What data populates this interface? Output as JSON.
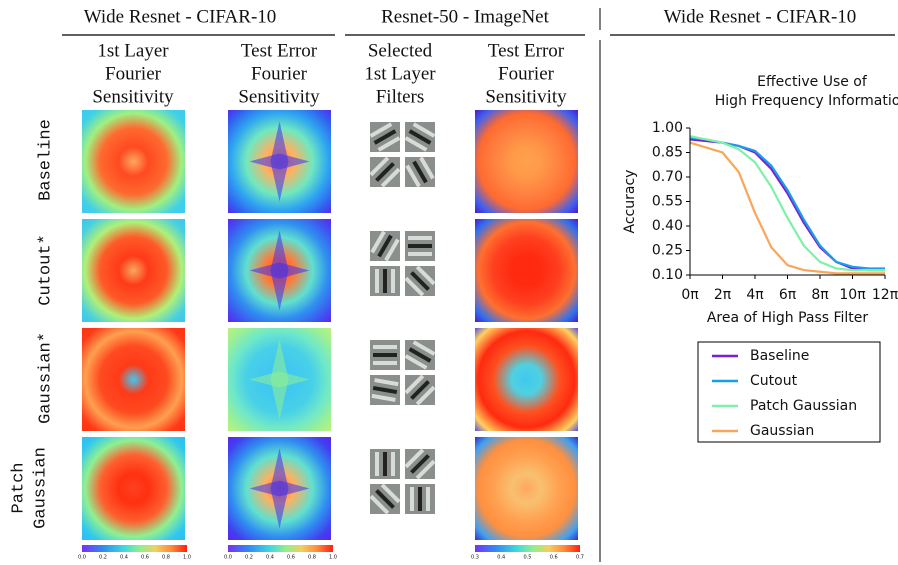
{
  "headers": [
    "Wide Resnet - CIFAR-10",
    "Resnet-50 - ImageNet",
    "Wide Resnet - CIFAR-10"
  ],
  "columns": [
    [
      "1st Layer",
      "Fourier",
      "Sensitivity"
    ],
    [
      "Test Error",
      "Fourier",
      "Sensitivity"
    ],
    [
      "Selected",
      "1st Layer",
      "Filters"
    ],
    [
      "Test Error",
      "Fourier",
      "Sensitivity"
    ]
  ],
  "rows": [
    [
      "Baseline"
    ],
    [
      "Cutout*"
    ],
    [
      "Gaussian*"
    ],
    [
      "Patch",
      "Gaussian"
    ]
  ],
  "colorbars": [
    [
      "0.0",
      "0.2",
      "0.4",
      "0.6",
      "0.8",
      "1.0"
    ],
    [
      "0.0",
      "0.2",
      "0.4",
      "0.6",
      "0.8",
      "1.0"
    ],
    [
      "0.3",
      "0.4",
      "0.5",
      "0.6",
      "0.7"
    ]
  ],
  "chart_data": {
    "type": "line",
    "title": [
      "Effective Use of",
      "High Frequency Information"
    ],
    "xlabel": "Area of High Pass Filter",
    "ylabel": "Accuracy",
    "x": [
      0,
      1,
      2,
      3,
      4,
      5,
      6,
      7,
      8,
      9,
      10,
      11,
      12
    ],
    "xlim": [
      0,
      12
    ],
    "xticks": [
      {
        "value": 0,
        "label": "0π"
      },
      {
        "value": 2,
        "label": "2π"
      },
      {
        "value": 4,
        "label": "4π"
      },
      {
        "value": 6,
        "label": "6π"
      },
      {
        "value": 8,
        "label": "8π"
      },
      {
        "value": 10,
        "label": "10π"
      },
      {
        "value": 12,
        "label": "12π"
      }
    ],
    "ylim": [
      0.1,
      1.0
    ],
    "yticks": [
      {
        "value": 0.1,
        "label": "0.10"
      },
      {
        "value": 0.25,
        "label": "0.25"
      },
      {
        "value": 0.4,
        "label": "0.40"
      },
      {
        "value": 0.55,
        "label": "0.55"
      },
      {
        "value": 0.7,
        "label": "0.70"
      },
      {
        "value": 0.85,
        "label": "0.85"
      },
      {
        "value": 1.0,
        "label": "1.00"
      }
    ],
    "legend": "lower right",
    "series": [
      {
        "name": "Baseline",
        "color": "#7a1fd6",
        "values": [
          0.93,
          0.92,
          0.91,
          0.89,
          0.85,
          0.75,
          0.6,
          0.42,
          0.27,
          0.18,
          0.14,
          0.13,
          0.13
        ]
      },
      {
        "name": "Cutout",
        "color": "#1a9ee8",
        "values": [
          0.94,
          0.93,
          0.91,
          0.89,
          0.86,
          0.77,
          0.62,
          0.44,
          0.28,
          0.18,
          0.15,
          0.14,
          0.14
        ]
      },
      {
        "name": "Patch Gaussian",
        "color": "#7ef0a8",
        "values": [
          0.95,
          0.93,
          0.91,
          0.87,
          0.79,
          0.64,
          0.45,
          0.28,
          0.18,
          0.14,
          0.13,
          0.13,
          0.13
        ]
      },
      {
        "name": "Gaussian",
        "color": "#f9a55a",
        "values": [
          0.91,
          0.88,
          0.85,
          0.73,
          0.48,
          0.27,
          0.16,
          0.13,
          0.12,
          0.11,
          0.11,
          0.11,
          0.11
        ]
      }
    ]
  }
}
